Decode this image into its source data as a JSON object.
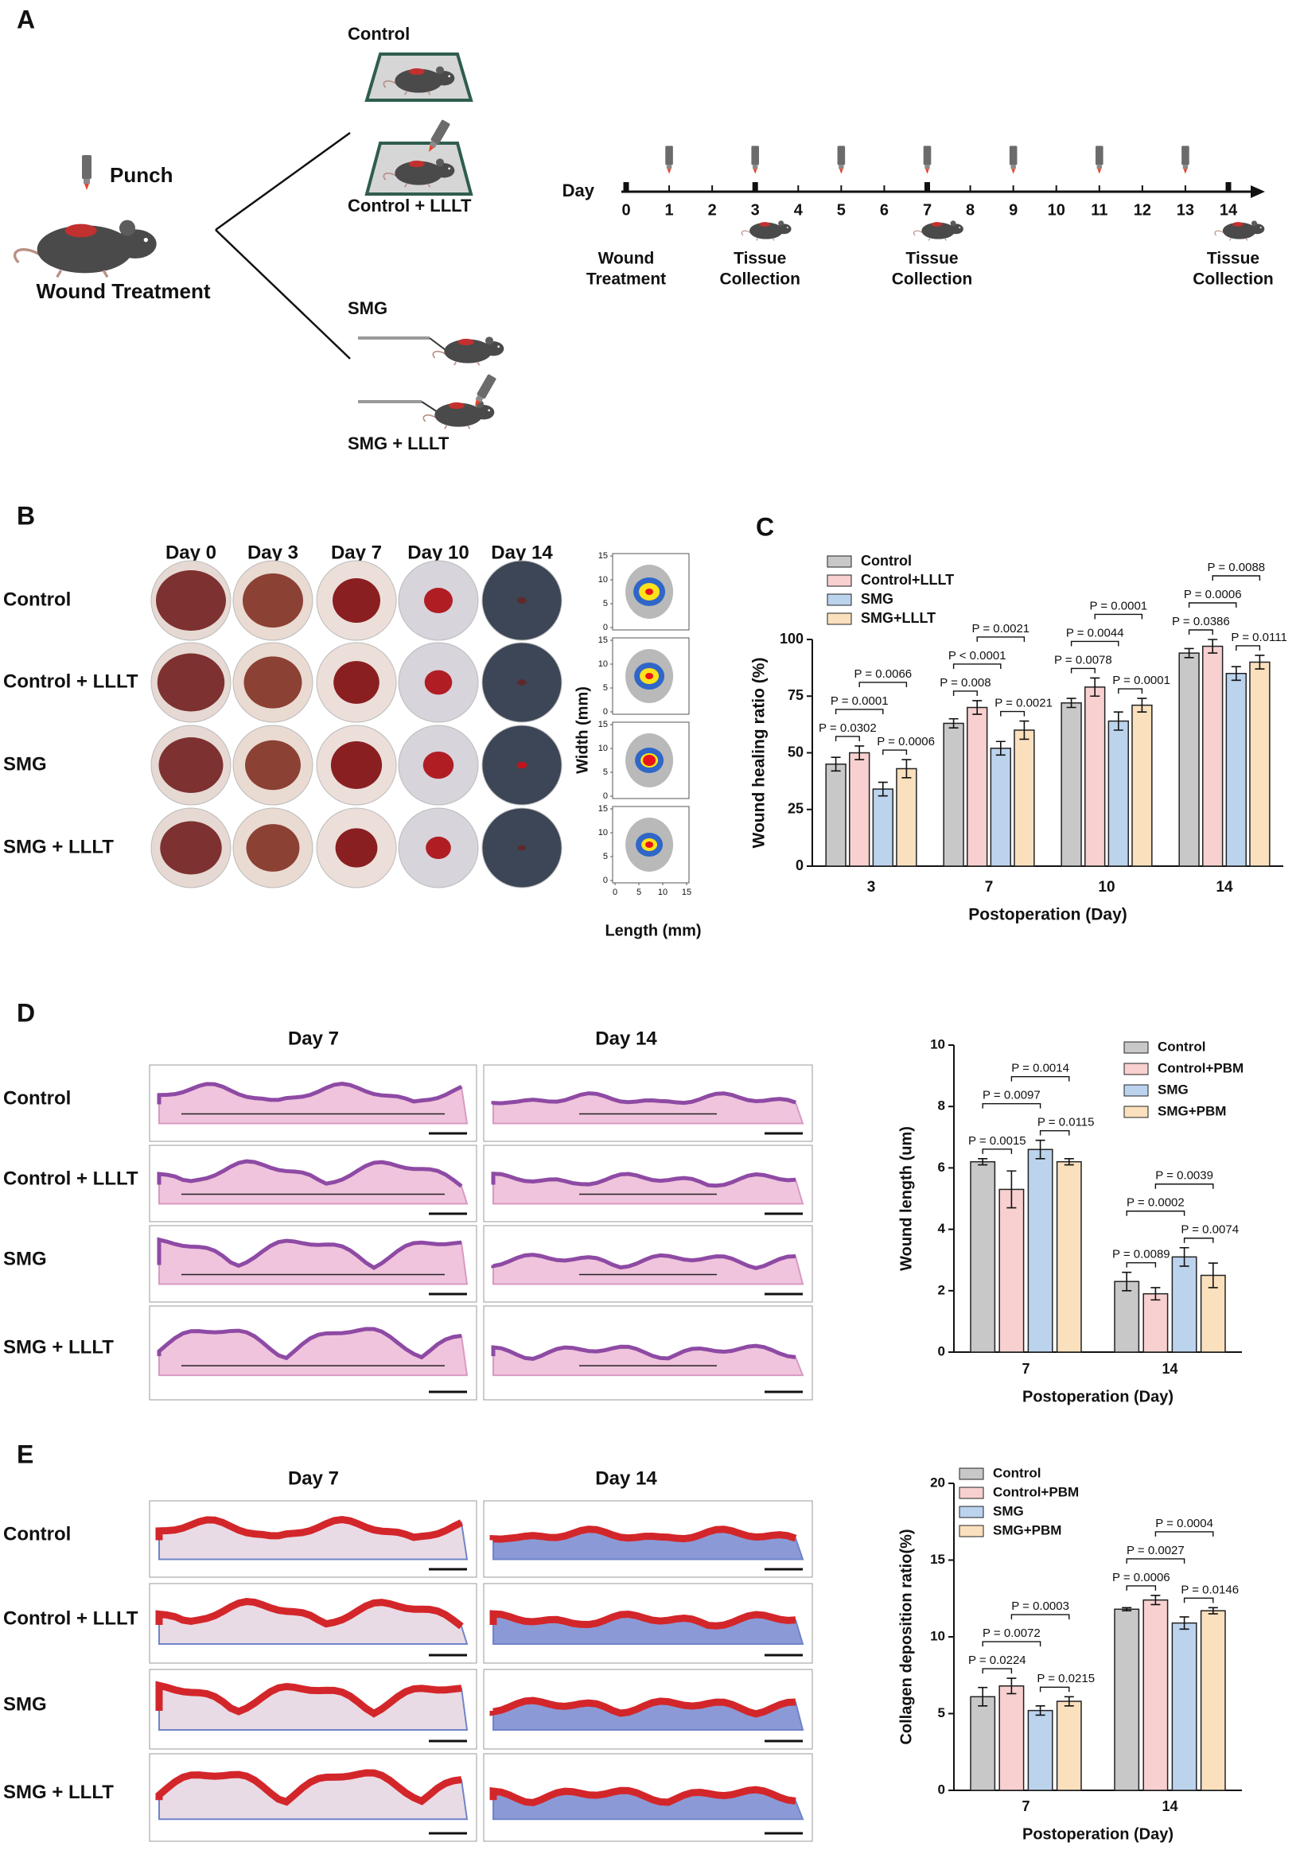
{
  "panel_labels": [
    "A",
    "B",
    "C",
    "D",
    "E"
  ],
  "panel_a": {
    "punch": "Punch",
    "treatment": "Wound Treatment",
    "groups": [
      "Control",
      "Control + LLLT",
      "SMG",
      "SMG + LLLT"
    ],
    "timeline": {
      "axis_label": "Day",
      "days": [
        0,
        1,
        2,
        3,
        4,
        5,
        6,
        7,
        8,
        9,
        10,
        11,
        12,
        13,
        14
      ],
      "events": [
        {
          "day": 0,
          "label": [
            "Wound",
            "Treatment"
          ]
        },
        {
          "day": 3,
          "label": [
            "Tissue",
            "Collection"
          ]
        },
        {
          "day": 7,
          "label": [
            "Tissue",
            "Collection"
          ]
        },
        {
          "day": 14,
          "label": [
            "Tissue",
            "Collection"
          ]
        }
      ]
    }
  },
  "panel_b": {
    "days": [
      "Day 0",
      "Day 3",
      "Day 7",
      "Day 10",
      "Day 14"
    ],
    "groups": [
      "Control",
      "Control + LLLT",
      "SMG",
      "SMG + LLLT"
    ],
    "y_label": "Width (mm)",
    "x_label": "Length (mm)",
    "ticks": [
      0,
      5,
      10,
      15
    ]
  },
  "panel_d": {
    "days": [
      "Day 7",
      "Day 14"
    ],
    "groups": [
      "Control",
      "Control + LLLT",
      "SMG",
      "SMG + LLLT"
    ]
  },
  "panel_e": {
    "days": [
      "Day 7",
      "Day 14"
    ],
    "groups": [
      "Control",
      "Control + LLLT",
      "SMG",
      "SMG + LLLT"
    ]
  },
  "chart_data": [
    {
      "type": "bar",
      "y_label": "Wound healing ratio (%)",
      "x_label": "Postoperation (Day)",
      "categories": [
        "3",
        "7",
        "10",
        "14"
      ],
      "series": [
        {
          "name": "Control",
          "color": "#c8c8c8",
          "values": [
            45,
            63,
            72,
            94
          ],
          "errors": [
            3,
            2,
            2,
            2
          ]
        },
        {
          "name": "Control+LLLT",
          "color": "#f8d0d0",
          "values": [
            50,
            70,
            79,
            97
          ],
          "errors": [
            3,
            3,
            4,
            3
          ]
        },
        {
          "name": "SMG",
          "color": "#bcd3ee",
          "values": [
            34,
            52,
            64,
            85
          ],
          "errors": [
            3,
            3,
            4,
            3
          ]
        },
        {
          "name": "SMG+LLLT",
          "color": "#fbe0bd",
          "values": [
            43,
            60,
            71,
            90
          ],
          "errors": [
            4,
            4,
            3,
            3
          ]
        }
      ],
      "ylim": [
        0,
        100
      ],
      "yticks": [
        0,
        25,
        50,
        75,
        100
      ],
      "annotations": [
        {
          "category": "3",
          "between": [
            "Control",
            "Control+LLLT"
          ],
          "label": "P = 0.0302"
        },
        {
          "category": "3",
          "between": [
            "Control",
            "SMG"
          ],
          "label": "P = 0.0001"
        },
        {
          "category": "3",
          "between": [
            "Control+LLLT",
            "SMG+LLLT"
          ],
          "label": "P = 0.0066"
        },
        {
          "category": "3",
          "between": [
            "SMG",
            "SMG+LLLT"
          ],
          "label": "P = 0.0006"
        },
        {
          "category": "7",
          "between": [
            "Control",
            "Control+LLLT"
          ],
          "label": "P = 0.008"
        },
        {
          "category": "7",
          "between": [
            "Control",
            "SMG"
          ],
          "label": "P < 0.0001"
        },
        {
          "category": "7",
          "between": [
            "Control+LLLT",
            "SMG+LLLT"
          ],
          "label": "P = 0.0021"
        },
        {
          "category": "7",
          "between": [
            "SMG",
            "SMG+LLLT"
          ],
          "label": "P = 0.0021"
        },
        {
          "category": "10",
          "between": [
            "Control",
            "Control+LLLT"
          ],
          "label": "P = 0.0078"
        },
        {
          "category": "10",
          "between": [
            "Control",
            "SMG"
          ],
          "label": "P = 0.0044"
        },
        {
          "category": "10",
          "between": [
            "Control+LLLT",
            "SMG+LLLT"
          ],
          "label": "P = 0.0001"
        },
        {
          "category": "10",
          "between": [
            "SMG",
            "SMG+LLLT"
          ],
          "label": "P = 0.0001"
        },
        {
          "category": "14",
          "between": [
            "Control",
            "Control+LLLT"
          ],
          "label": "P = 0.0386"
        },
        {
          "category": "14",
          "between": [
            "Control",
            "SMG"
          ],
          "label": "P = 0.0006"
        },
        {
          "category": "14",
          "between": [
            "Control+LLLT",
            "SMG+LLLT"
          ],
          "label": "P = 0.0088"
        },
        {
          "category": "14",
          "between": [
            "SMG",
            "SMG+LLLT"
          ],
          "label": "P = 0.0111"
        }
      ]
    },
    {
      "type": "bar",
      "y_label": "Wound length (um)",
      "x_label": "Postoperation (Day)",
      "categories": [
        "7",
        "14"
      ],
      "series": [
        {
          "name": "Control",
          "color": "#c8c8c8",
          "values": [
            6.2,
            2.3
          ],
          "errors": [
            0.1,
            0.3
          ]
        },
        {
          "name": "Control+PBM",
          "color": "#f8d0d0",
          "values": [
            5.3,
            1.9
          ],
          "errors": [
            0.6,
            0.2
          ]
        },
        {
          "name": "SMG",
          "color": "#bcd3ee",
          "values": [
            6.6,
            3.1
          ],
          "errors": [
            0.3,
            0.3
          ]
        },
        {
          "name": "SMG+PBM",
          "color": "#fbe0bd",
          "values": [
            6.2,
            2.5
          ],
          "errors": [
            0.1,
            0.4
          ]
        }
      ],
      "ylim": [
        0,
        10
      ],
      "yticks": [
        0,
        2,
        4,
        6,
        8,
        10
      ],
      "annotations": [
        {
          "category": "7",
          "between": [
            "Control",
            "Control+PBM"
          ],
          "label": "P = 0.0015"
        },
        {
          "category": "7",
          "between": [
            "Control",
            "SMG"
          ],
          "label": "P = 0.0097"
        },
        {
          "category": "7",
          "between": [
            "Control+PBM",
            "SMG+PBM"
          ],
          "label": "P = 0.0014"
        },
        {
          "category": "7",
          "between": [
            "SMG",
            "SMG+PBM"
          ],
          "label": "P = 0.0115"
        },
        {
          "category": "14",
          "between": [
            "Control",
            "Control+PBM"
          ],
          "label": "P = 0.0089"
        },
        {
          "category": "14",
          "between": [
            "Control",
            "SMG"
          ],
          "label": "P = 0.0002"
        },
        {
          "category": "14",
          "between": [
            "Control+PBM",
            "SMG+PBM"
          ],
          "label": "P = 0.0039"
        },
        {
          "category": "14",
          "between": [
            "SMG",
            "SMG+PBM"
          ],
          "label": "P = 0.0074"
        }
      ]
    },
    {
      "type": "bar",
      "y_label": "Collagen deposition ratio(%)",
      "x_label": "Postoperation (Day)",
      "categories": [
        "7",
        "14"
      ],
      "series": [
        {
          "name": "Control",
          "color": "#c8c8c8",
          "values": [
            6.1,
            11.8
          ],
          "errors": [
            0.6,
            0.1
          ]
        },
        {
          "name": "Control+PBM",
          "color": "#f8d0d0",
          "values": [
            6.8,
            12.4
          ],
          "errors": [
            0.5,
            0.3
          ]
        },
        {
          "name": "SMG",
          "color": "#bcd3ee",
          "values": [
            5.2,
            10.9
          ],
          "errors": [
            0.3,
            0.4
          ]
        },
        {
          "name": "SMG+PBM",
          "color": "#fbe0bd",
          "values": [
            5.8,
            11.7
          ],
          "errors": [
            0.3,
            0.2
          ]
        }
      ],
      "ylim": [
        0,
        20
      ],
      "yticks": [
        0,
        5,
        10,
        15,
        20
      ],
      "annotations": [
        {
          "category": "7",
          "between": [
            "Control",
            "Control+PBM"
          ],
          "label": "P = 0.0224"
        },
        {
          "category": "7",
          "between": [
            "Control",
            "SMG"
          ],
          "label": "P = 0.0072"
        },
        {
          "category": "7",
          "between": [
            "Control+PBM",
            "SMG+PBM"
          ],
          "label": "P = 0.0003"
        },
        {
          "category": "7",
          "between": [
            "SMG",
            "SMG+PBM"
          ],
          "label": "P = 0.0215"
        },
        {
          "category": "14",
          "between": [
            "Control",
            "Control+PBM"
          ],
          "label": "P = 0.0006"
        },
        {
          "category": "14",
          "between": [
            "Control",
            "SMG"
          ],
          "label": "P = 0.0027"
        },
        {
          "category": "14",
          "between": [
            "Control+PBM",
            "SMG+PBM"
          ],
          "label": "P = 0.0004"
        },
        {
          "category": "14",
          "between": [
            "SMG",
            "SMG+PBM"
          ],
          "label": "P = 0.0146"
        }
      ]
    }
  ]
}
